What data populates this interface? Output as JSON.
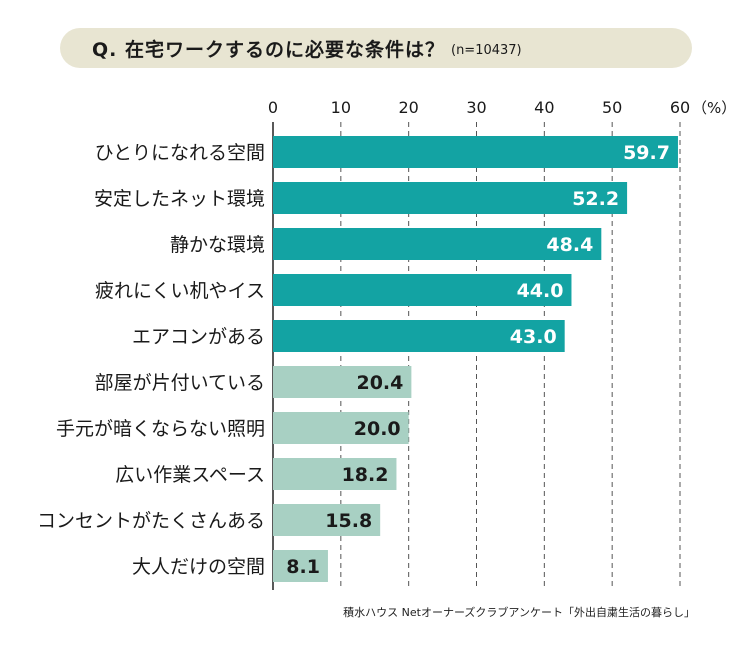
{
  "title": "Q. 在宅ワークするのに必要な条件は？",
  "subtitle": "(n=10437)",
  "source": "積水ハウス Netオーナーズクラブアンケート「外出自粛生活の暮らし」",
  "colors": {
    "top": "#13a3a3",
    "rest": "#a8d0c3",
    "grid": "#555555",
    "label_light": "#ffffff",
    "label_dark": "#1a1a1a"
  },
  "chart_data": {
    "type": "bar",
    "orientation": "horizontal",
    "categories": [
      "ひとりになれる空間",
      "安定したネット環境",
      "静かな環境",
      "疲れにくい机やイス",
      "エアコンがある",
      "部屋が片付いている",
      "手元が暗くならない照明",
      "広い作業スペース",
      "コンセントがたくさんある",
      "大人だけの空間"
    ],
    "values": [
      59.7,
      52.2,
      48.4,
      44.0,
      43.0,
      20.4,
      20.0,
      18.2,
      15.8,
      8.1
    ],
    "value_labels": [
      "59.7",
      "52.2",
      "48.4",
      "44.0",
      "43.0",
      "20.4",
      "20.0",
      "18.2",
      "15.8",
      "8.1"
    ],
    "xlim": [
      0,
      60
    ],
    "xticks": [
      "0",
      "10",
      "20",
      "30",
      "40",
      "50",
      "60"
    ],
    "unit": "（%）",
    "grid": true,
    "highlight_top": 5
  }
}
